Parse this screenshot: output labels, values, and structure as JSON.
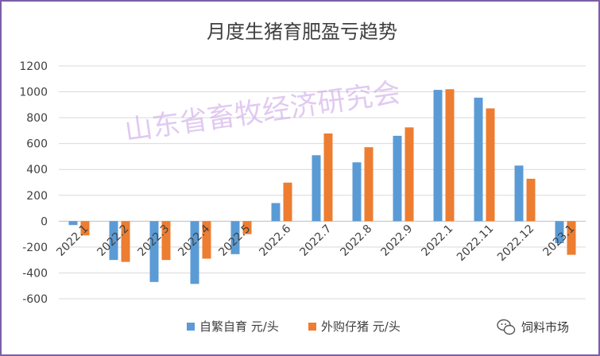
{
  "chart_data": {
    "type": "bar",
    "title": "月度生猪育肥盈亏趋势",
    "categories": [
      "2022.1",
      "2022.2",
      "2022.3",
      "2022.4",
      "2022.5",
      "2022.6",
      "2022.7",
      "2022.8",
      "2022.9",
      "2022.1",
      "2022.11",
      "2022.12",
      "2023.1"
    ],
    "series": [
      {
        "name": "自繁自育 元/头",
        "color": "#5b9bd5",
        "values": [
          -30,
          -300,
          -470,
          -485,
          -255,
          140,
          510,
          455,
          660,
          1015,
          955,
          430,
          -170
        ]
      },
      {
        "name": "外购仔猪 元/头",
        "color": "#ed7d31",
        "values": [
          -110,
          -315,
          -300,
          -290,
          -100,
          298,
          678,
          572,
          725,
          1020,
          872,
          328,
          -260
        ]
      }
    ],
    "ylim": [
      -600,
      1200
    ],
    "yticks": [
      -600,
      -400,
      -200,
      0,
      200,
      400,
      600,
      800,
      1000,
      1200
    ],
    "ytick_labels": [
      "-600",
      "-400",
      "-200",
      "0",
      "200",
      "400",
      "600",
      "800",
      "1000",
      "1200"
    ],
    "grid": true,
    "legend_position": "bottom"
  },
  "watermark": "山东省畜牧经济研究会",
  "brand": {
    "label": "饲料市场",
    "icon": "wechat-icon"
  }
}
